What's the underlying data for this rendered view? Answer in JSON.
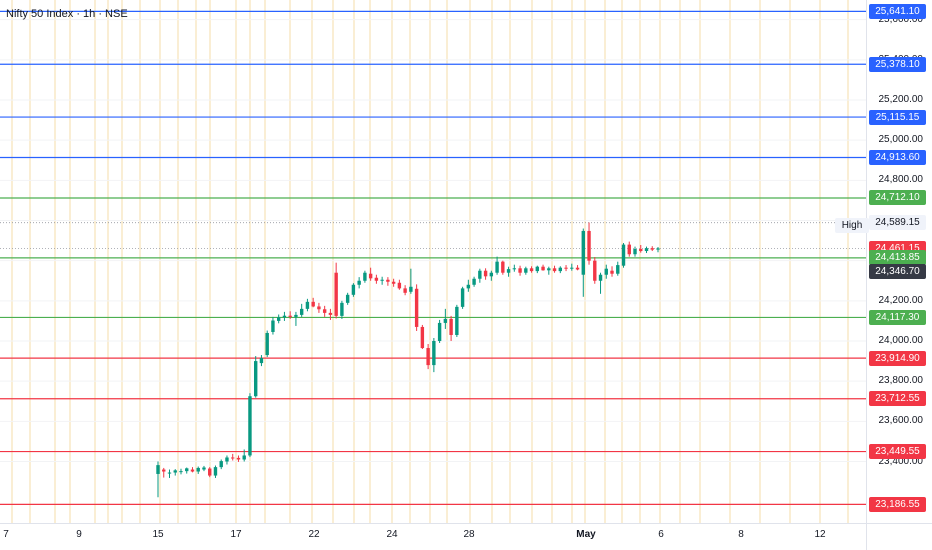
{
  "chart": {
    "title": "Nifty 50 Index · 1h · NSE",
    "high_label": "High",
    "y_ticks": [
      "25,600.00",
      "25,400.00",
      "25,200.00",
      "25,000.00",
      "24,800.00",
      "24,600.00",
      "24,200.00",
      "24,000.00",
      "23,800.00",
      "23,600.00",
      "23,400.00"
    ],
    "x_ticks": [
      "7",
      "9",
      "15",
      "17",
      "22",
      "24",
      "28",
      "May",
      "6",
      "8",
      "12"
    ],
    "badges": [
      "25,641.10",
      "25,378.10",
      "25,115.15",
      "24,913.60",
      "24,712.10",
      "24,589.15",
      "24,461.15",
      "24,413.85",
      "24,346.70",
      "24,117.30",
      "23,914.90",
      "23,712.55",
      "23,449.55",
      "23,186.55"
    ],
    "colors": {
      "resistance_blue": "#2962ff",
      "support_green": "#4caf50",
      "support_red": "#f23645",
      "candle_up": "#089981",
      "candle_down": "#f23645",
      "session_grid": "#f7e3b8",
      "last_price_badge": "#363a45",
      "high_badge_bg": "#f0f3fa"
    }
  },
  "chart_data": {
    "type": "candlestick",
    "title": "Nifty 50 Index · 1h · NSE",
    "y_range": [
      23130,
      25700
    ],
    "x_categories": [
      "7",
      "9",
      "15",
      "17",
      "22",
      "24",
      "28",
      "May",
      "6",
      "8",
      "12"
    ],
    "horizontal_levels": [
      {
        "value": 25641.1,
        "color": "blue"
      },
      {
        "value": 25378.1,
        "color": "blue"
      },
      {
        "value": 25115.15,
        "color": "blue"
      },
      {
        "value": 24913.6,
        "color": "blue"
      },
      {
        "value": 24712.1,
        "color": "green"
      },
      {
        "value": 24413.85,
        "color": "green"
      },
      {
        "value": 24117.3,
        "color": "green"
      },
      {
        "value": 23914.9,
        "color": "red"
      },
      {
        "value": 23712.55,
        "color": "red"
      },
      {
        "value": 23449.55,
        "color": "red"
      },
      {
        "value": 23186.55,
        "color": "red"
      }
    ],
    "high": 24589.15,
    "last_price": 24461.15,
    "prev_close_marker": 24346.7,
    "ohlc": [
      [
        23338,
        23400,
        23222,
        23382
      ],
      [
        23360,
        23368,
        23320,
        23350
      ],
      [
        23340,
        23360,
        23318,
        23345
      ],
      [
        23345,
        23362,
        23330,
        23356
      ],
      [
        23350,
        23364,
        23336,
        23352
      ],
      [
        23352,
        23370,
        23340,
        23366
      ],
      [
        23360,
        23372,
        23346,
        23350
      ],
      [
        23350,
        23375,
        23338,
        23368
      ],
      [
        23360,
        23378,
        23352,
        23370
      ],
      [
        23365,
        23372,
        23322,
        23330
      ],
      [
        23330,
        23380,
        23318,
        23372
      ],
      [
        23372,
        23410,
        23362,
        23402
      ],
      [
        23400,
        23430,
        23385,
        23420
      ],
      [
        23420,
        23438,
        23405,
        23415
      ],
      [
        23418,
        23430,
        23398,
        23410
      ],
      [
        23410,
        23460,
        23400,
        23430
      ],
      [
        23430,
        23740,
        23422,
        23725
      ],
      [
        23725,
        23925,
        23718,
        23900
      ],
      [
        23890,
        23930,
        23875,
        23915
      ],
      [
        23930,
        24052,
        23920,
        24040
      ],
      [
        24045,
        24120,
        24032,
        24102
      ],
      [
        24100,
        24132,
        24088,
        24118
      ],
      [
        24118,
        24145,
        24100,
        24126
      ],
      [
        24126,
        24148,
        24110,
        24120
      ],
      [
        24120,
        24145,
        24075,
        24130
      ],
      [
        24130,
        24185,
        24120,
        24160
      ],
      [
        24160,
        24210,
        24148,
        24195
      ],
      [
        24195,
        24215,
        24168,
        24172
      ],
      [
        24172,
        24190,
        24140,
        24158
      ],
      [
        24158,
        24175,
        24120,
        24140
      ],
      [
        24140,
        24160,
        24105,
        24130
      ],
      [
        24340,
        24390,
        24112,
        24125
      ],
      [
        24125,
        24200,
        24110,
        24190
      ],
      [
        24190,
        24240,
        24180,
        24230
      ],
      [
        24230,
        24288,
        24220,
        24280
      ],
      [
        24280,
        24318,
        24262,
        24300
      ],
      [
        24300,
        24350,
        24290,
        24340
      ],
      [
        24335,
        24365,
        24300,
        24312
      ],
      [
        24315,
        24330,
        24285,
        24300
      ],
      [
        24300,
        24320,
        24280,
        24305
      ],
      [
        24305,
        24318,
        24275,
        24295
      ],
      [
        24295,
        24310,
        24270,
        24285
      ],
      [
        24290,
        24305,
        24255,
        24262
      ],
      [
        24262,
        24278,
        24228,
        24240
      ],
      [
        24245,
        24360,
        24235,
        24270
      ],
      [
        24260,
        24282,
        24050,
        24070
      ],
      [
        24070,
        24080,
        23960,
        23965
      ],
      [
        23965,
        23985,
        23860,
        23880
      ],
      [
        23880,
        24015,
        23845,
        24000
      ],
      [
        24000,
        24105,
        23990,
        24090
      ],
      [
        24090,
        24160,
        24060,
        24110
      ],
      [
        24110,
        24125,
        24000,
        24030
      ],
      [
        24030,
        24180,
        24020,
        24170
      ],
      [
        24170,
        24270,
        24160,
        24262
      ],
      [
        24262,
        24305,
        24245,
        24280
      ],
      [
        24280,
        24320,
        24270,
        24310
      ],
      [
        24310,
        24360,
        24290,
        24350
      ],
      [
        24350,
        24362,
        24305,
        24322
      ],
      [
        24322,
        24350,
        24300,
        24340
      ],
      [
        24340,
        24420,
        24330,
        24395
      ],
      [
        24395,
        24400,
        24330,
        24340
      ],
      [
        24340,
        24370,
        24320,
        24358
      ],
      [
        24358,
        24380,
        24345,
        24362
      ],
      [
        24362,
        24375,
        24325,
        24340
      ],
      [
        24340,
        24370,
        24330,
        24362
      ],
      [
        24362,
        24372,
        24340,
        24348
      ],
      [
        24348,
        24375,
        24338,
        24370
      ],
      [
        24370,
        24380,
        24350,
        24352
      ],
      [
        24352,
        24370,
        24330,
        24362
      ],
      [
        24362,
        24375,
        24340,
        24348
      ],
      [
        24348,
        24372,
        24338,
        24365
      ],
      [
        24365,
        24378,
        24348,
        24360
      ],
      [
        24360,
        24385,
        24350,
        24365
      ],
      [
        24365,
        24378,
        24352,
        24356
      ],
      [
        24330,
        24560,
        24220,
        24548
      ],
      [
        24548,
        24590,
        24380,
        24400
      ],
      [
        24400,
        24418,
        24285,
        24300
      ],
      [
        24300,
        24340,
        24235,
        24330
      ],
      [
        24330,
        24380,
        24310,
        24360
      ],
      [
        24350,
        24372,
        24320,
        24335
      ],
      [
        24335,
        24395,
        24325,
        24378
      ],
      [
        24375,
        24488,
        24365,
        24480
      ],
      [
        24480,
        24495,
        24420,
        24432
      ],
      [
        24432,
        24470,
        24420,
        24458
      ],
      [
        24458,
        24478,
        24440,
        24448
      ],
      [
        24448,
        24470,
        24438,
        24462
      ],
      [
        24462,
        24472,
        24448,
        24455
      ],
      [
        24455,
        24468,
        24442,
        24461
      ]
    ]
  }
}
